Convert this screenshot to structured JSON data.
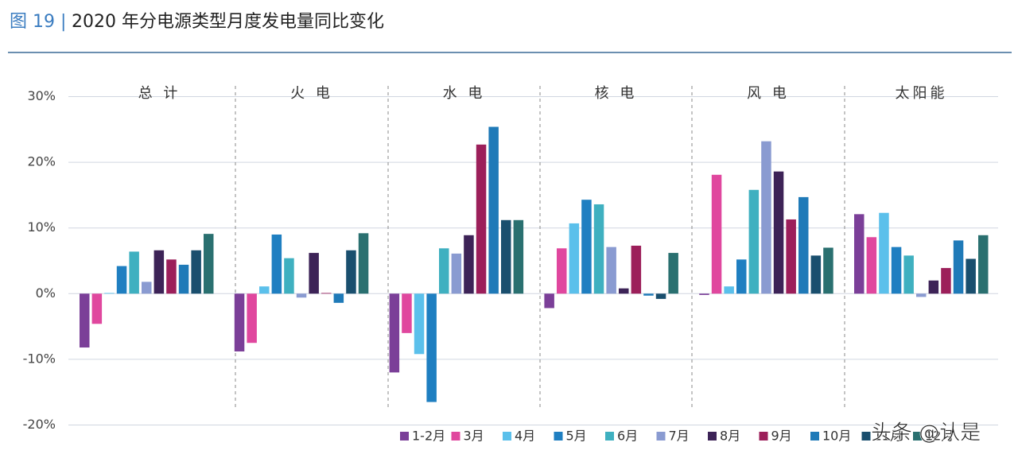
{
  "chart_data": {
    "type": "bar",
    "figure_label": "图 19 |",
    "title": "2020 年分电源类型月度发电量同比变化",
    "categories": [
      "总 计",
      "火 电",
      "水 电",
      "核 电",
      "风 电",
      "太阳能"
    ],
    "series": [
      {
        "name": "1-2月",
        "color": "#7b3f98",
        "values": [
          -8.2,
          -8.8,
          -12.0,
          -2.2,
          -0.2,
          12.1
        ]
      },
      {
        "name": "3月",
        "color": "#e0479e",
        "values": [
          -4.6,
          -7.5,
          -6.0,
          6.9,
          18.1,
          8.6
        ]
      },
      {
        "name": "4月",
        "color": "#5bc0eb",
        "values": [
          0.1,
          1.1,
          -9.2,
          10.7,
          1.1,
          12.3
        ]
      },
      {
        "name": "5月",
        "color": "#1f7fc1",
        "values": [
          4.2,
          9.0,
          -16.5,
          14.3,
          5.2,
          7.1
        ]
      },
      {
        "name": "6月",
        "color": "#3fb0c0",
        "values": [
          6.4,
          5.4,
          6.9,
          13.6,
          15.8,
          5.8
        ]
      },
      {
        "name": "7月",
        "color": "#8a9bd1",
        "values": [
          1.8,
          -0.6,
          6.1,
          7.1,
          23.2,
          -0.5
        ]
      },
      {
        "name": "8月",
        "color": "#3d2357",
        "values": [
          6.6,
          6.2,
          8.9,
          0.8,
          18.6,
          2.0
        ]
      },
      {
        "name": "9月",
        "color": "#9c1f5a",
        "values": [
          5.2,
          0.1,
          22.7,
          7.3,
          11.3,
          3.9
        ]
      },
      {
        "name": "10月",
        "color": "#1f7ab8",
        "values": [
          4.4,
          -1.4,
          25.4,
          -0.3,
          14.7,
          8.1
        ]
      },
      {
        "name": "11月",
        "color": "#1a4f6e",
        "values": [
          6.6,
          6.6,
          11.2,
          -0.8,
          5.8,
          5.3
        ]
      },
      {
        "name": "12月",
        "color": "#2a7070",
        "values": [
          9.1,
          9.2,
          11.2,
          6.2,
          7.0,
          8.9
        ]
      }
    ],
    "ylim": [
      -22,
      32
    ],
    "yticks": [
      {
        "value": 30,
        "label": "30%"
      },
      {
        "value": 20,
        "label": "20%"
      },
      {
        "value": 10,
        "label": "10%"
      },
      {
        "value": 0,
        "label": "0%"
      },
      {
        "value": -10,
        "label": "-10%"
      },
      {
        "value": -20,
        "label": "-20%"
      }
    ],
    "grid": true,
    "watermark": "头条 @认是"
  }
}
